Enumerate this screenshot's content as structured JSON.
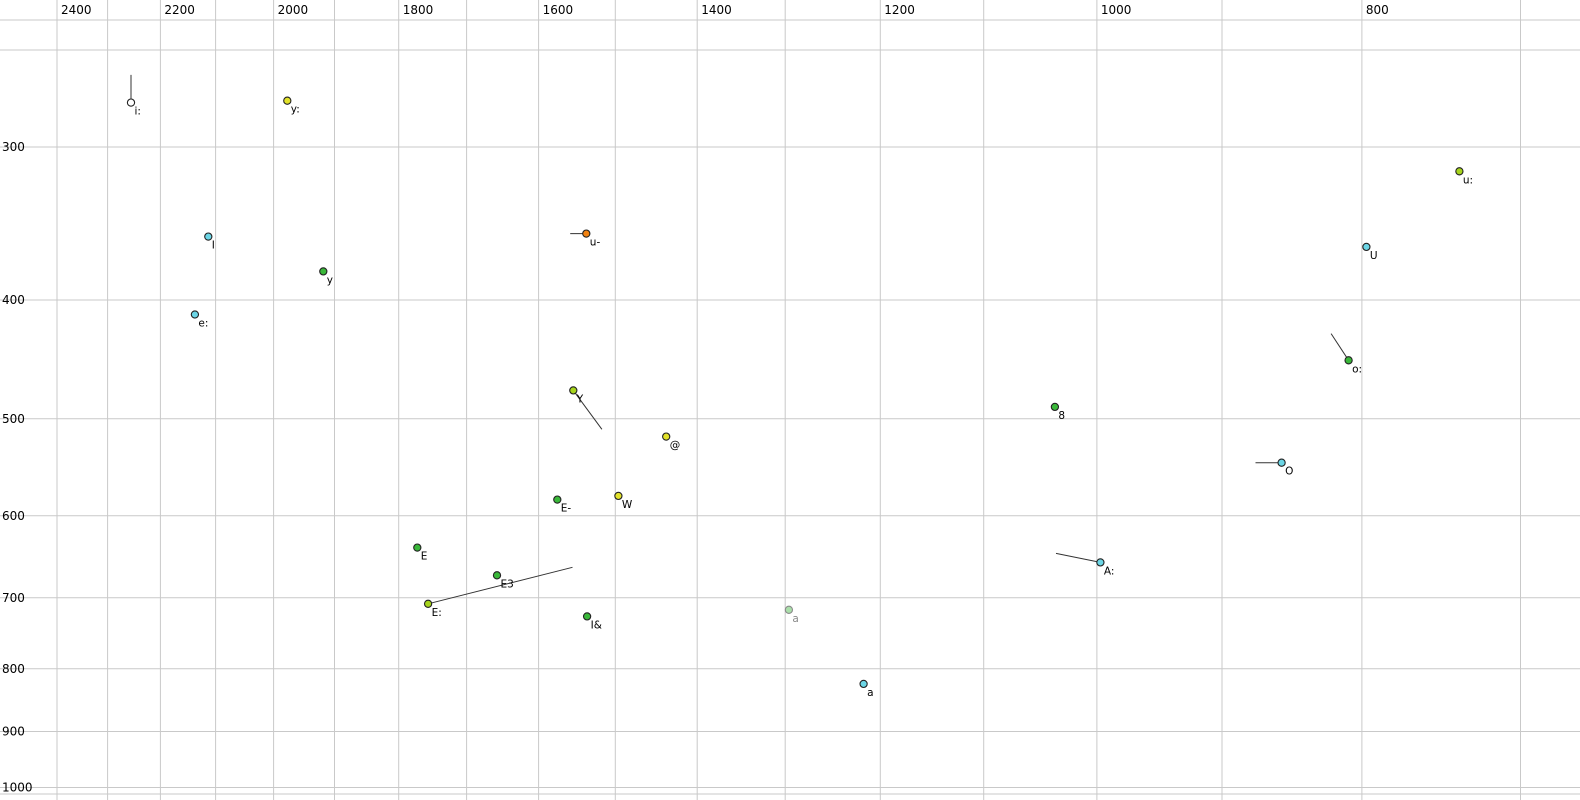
{
  "chart_data": {
    "type": "scatter",
    "title": "",
    "description": "F1/F2 vowel formant plot, log-scaled reversed axes (Hz)",
    "x_axis": {
      "scale": "log",
      "reversed": true,
      "unit": "Hz",
      "tick_labels": [
        2400,
        2200,
        2000,
        1800,
        1600,
        1400,
        1200,
        1000,
        800
      ],
      "grid_min": 700,
      "grid_max": 2400,
      "grid_step": 100,
      "range_hint": [
        2530,
        670
      ]
    },
    "y_axis": {
      "scale": "log",
      "unit": "Hz",
      "tick_labels": [
        300,
        400,
        500,
        600,
        700,
        800,
        900,
        1000
      ],
      "grid_values": [
        250,
        300,
        400,
        500,
        600,
        700,
        800,
        900,
        1000
      ],
      "range_hint": [
        246,
        1030
      ]
    },
    "colors": {
      "cyan": "#6cd6e6",
      "green": "#39b839",
      "yellow": "#e2e22a",
      "yellowgreen": "#a6d41c",
      "orange": "#f28211",
      "white": "#ffffff",
      "palegreen": "#aadfaa",
      "outline": "#222222",
      "grid": "#c9c9c9",
      "trajectory": "#333333",
      "label": "#000000",
      "label_muted": "#8a8a8a"
    },
    "points": [
      {
        "label": "i:",
        "f2": 2255,
        "f1": 276,
        "color": "white",
        "line_to": [
          2255,
          262
        ]
      },
      {
        "label": "y:",
        "f2": 1977,
        "f1": 275,
        "color": "yellow"
      },
      {
        "label": "u:",
        "f2": 737,
        "f1": 314,
        "color": "yellowgreen"
      },
      {
        "label": "I",
        "f2": 2113,
        "f1": 355,
        "color": "cyan"
      },
      {
        "label": "u-",
        "f2": 1537,
        "f1": 353,
        "color": "orange",
        "line_to": [
          1558,
          353
        ]
      },
      {
        "label": "U",
        "f2": 797,
        "f1": 362,
        "color": "cyan"
      },
      {
        "label": "y",
        "f2": 1918,
        "f1": 379,
        "color": "green"
      },
      {
        "label": "e:",
        "f2": 2137,
        "f1": 411,
        "color": "cyan"
      },
      {
        "label": "o:",
        "f2": 809,
        "f1": 448,
        "color": "green",
        "line_to": [
          821,
          426
        ]
      },
      {
        "label": "Y",
        "f2": 1554,
        "f1": 474,
        "color": "yellowgreen",
        "line_to": [
          1517,
          510
        ]
      },
      {
        "label": "8",
        "f2": 1036,
        "f1": 489,
        "color": "green"
      },
      {
        "label": "@",
        "f2": 1437,
        "f1": 517,
        "color": "yellow"
      },
      {
        "label": "O",
        "f2": 856,
        "f1": 543,
        "color": "cyan",
        "line_to": [
          875,
          543
        ]
      },
      {
        "label": "E-",
        "f2": 1575,
        "f1": 582,
        "color": "green"
      },
      {
        "label": "W",
        "f2": 1496,
        "f1": 578,
        "color": "yellow"
      },
      {
        "label": "E",
        "f2": 1772,
        "f1": 637,
        "color": "green"
      },
      {
        "label": "A:",
        "f2": 997,
        "f1": 655,
        "color": "cyan",
        "line_to": [
          1035,
          644
        ]
      },
      {
        "label": "E3",
        "f2": 1657,
        "f1": 671,
        "color": "green"
      },
      {
        "label": "E:",
        "f2": 1756,
        "f1": 708,
        "color": "yellowgreen",
        "line_to": [
          1555,
          661
        ]
      },
      {
        "label": "I&",
        "f2": 1536,
        "f1": 725,
        "color": "green"
      },
      {
        "label": "a",
        "f2": 1296,
        "f1": 716,
        "color": "palegreen",
        "muted": true
      },
      {
        "label": "a",
        "f2": 1217,
        "f1": 823,
        "color": "cyan"
      }
    ]
  }
}
